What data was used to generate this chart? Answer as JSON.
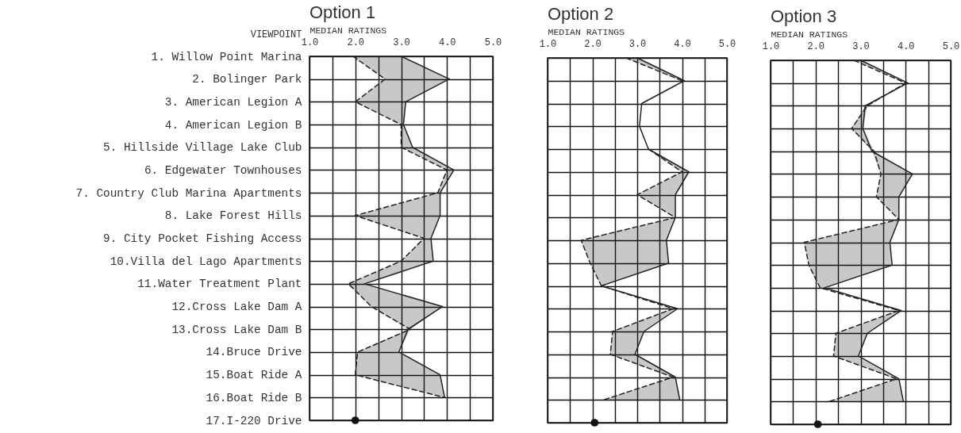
{
  "chart_data": [
    {
      "type": "line",
      "orientation": "horizontal",
      "title": "Option 1",
      "xlabel": "MEDIAN RATINGS",
      "ylabel": "VIEWPOINT",
      "categories": [
        "1. Willow Point Marina",
        "2. Bolinger Park",
        "3. American Legion A",
        "4. American Legion B",
        "5. Hillside Village Lake Club",
        "6. Edgewater Townhouses",
        "7. Country Club Marina Apartments",
        "8. Lake Forest Hills",
        "9. City Pocket Fishing Access",
        "10.Villa del Lago Apartments",
        "11.Water Treatment Plant",
        "12.Cross Lake Dam A",
        "13.Cross Lake Dam B",
        "14.Bruce Drive",
        "15.Boat Ride A",
        "16.Boat Ride B",
        "17.I-220 Drive"
      ],
      "xlim": [
        1,
        5
      ],
      "xticks": [
        {
          "value": 1,
          "label": "1.0"
        },
        {
          "value": 1.5,
          "label": null
        },
        {
          "value": 2,
          "label": "2.0"
        },
        {
          "value": 2.5,
          "label": null
        },
        {
          "value": 3,
          "label": "3.0"
        },
        {
          "value": 3.5,
          "label": null
        },
        {
          "value": 4,
          "label": "4.0"
        },
        {
          "value": 4.5,
          "label": null
        },
        {
          "value": 5,
          "label": "5.0"
        }
      ],
      "grid": true,
      "series": [
        {
          "color": "#222222",
          "values": [
            3.0,
            4.05,
            3.1,
            3.05,
            3.25,
            4.15,
            3.85,
            3.85,
            3.65,
            3.7,
            2.2,
            3.9,
            3.15,
            2.95,
            3.85,
            3.95,
            null
          ]
        },
        {
          "color": "#222222",
          "line_style": "dashed",
          "values": [
            1.95,
            2.65,
            2.0,
            3.0,
            3.0,
            4.0,
            3.8,
            2.0,
            3.5,
            3.0,
            1.85,
            2.35,
            3.2,
            2.05,
            2.0,
            3.95,
            null
          ],
          "lower": [
            1.95,
            2.65,
            2.0,
            3.0,
            3.0,
            4.0,
            3.8,
            2.0,
            3.5,
            3.0,
            1.85,
            2.35,
            3.15,
            2.05,
            2.0,
            3.95,
            null
          ],
          "upper": [
            3.0,
            4.05,
            3.1,
            3.05,
            3.25,
            4.15,
            3.85,
            3.85,
            3.65,
            3.7,
            2.2,
            3.9,
            3.2,
            2.95,
            3.85,
            3.95,
            null
          ]
        },
        {
          "type": "scatter",
          "marker": "circle",
          "color": "#111111",
          "values": [
            null,
            null,
            null,
            null,
            null,
            null,
            null,
            null,
            null,
            null,
            null,
            null,
            null,
            null,
            null,
            null,
            2.0
          ]
        }
      ]
    },
    {
      "type": "line",
      "orientation": "horizontal",
      "title": "Option 2",
      "xlabel": "MEDIAN RATINGS",
      "categories": [
        null,
        null,
        null,
        null,
        null,
        null,
        null,
        null,
        null,
        null,
        null,
        null,
        null,
        null,
        null,
        null,
        null
      ],
      "xlim": [
        1,
        5
      ],
      "xticks": [
        {
          "value": 1,
          "label": "1.0"
        },
        {
          "value": 1.5,
          "label": null
        },
        {
          "value": 2,
          "label": "2.0"
        },
        {
          "value": 2.5,
          "label": null
        },
        {
          "value": 3,
          "label": "3.0"
        },
        {
          "value": 3.5,
          "label": null
        },
        {
          "value": 4,
          "label": "4.0"
        },
        {
          "value": 4.5,
          "label": null
        },
        {
          "value": 5,
          "label": "5.0"
        }
      ],
      "grid": true,
      "series": [
        {
          "color": "#222222",
          "values": [
            3.0,
            4.05,
            3.1,
            3.05,
            3.25,
            4.15,
            3.85,
            3.85,
            3.65,
            3.7,
            2.2,
            3.9,
            3.15,
            2.95,
            3.85,
            3.95,
            null
          ]
        },
        {
          "color": "#222222",
          "line_style": "dashed",
          "values": [
            2.75,
            4.0,
            null,
            null,
            3.25,
            4.0,
            3.0,
            3.85,
            1.75,
            1.95,
            2.2,
            3.8,
            2.45,
            2.4,
            3.8,
            2.25,
            null
          ],
          "lower": [
            2.75,
            4.0,
            null,
            null,
            3.25,
            4.0,
            3.0,
            3.85,
            1.75,
            1.95,
            2.2,
            3.8,
            2.45,
            2.4,
            3.8,
            2.25,
            null
          ],
          "upper": [
            3.0,
            4.05,
            null,
            null,
            3.25,
            4.15,
            3.85,
            3.85,
            3.65,
            3.7,
            2.2,
            3.9,
            3.15,
            2.95,
            3.85,
            3.95,
            null
          ]
        },
        {
          "type": "scatter",
          "marker": "circle",
          "color": "#111111",
          "values": [
            null,
            null,
            null,
            null,
            null,
            null,
            null,
            null,
            null,
            null,
            null,
            null,
            null,
            null,
            null,
            null,
            2.05
          ]
        }
      ]
    },
    {
      "type": "line",
      "orientation": "horizontal",
      "title": "Option 3",
      "xlabel": "MEDIAN RATINGS",
      "categories": [
        null,
        null,
        null,
        null,
        null,
        null,
        null,
        null,
        null,
        null,
        null,
        null,
        null,
        null,
        null,
        null,
        null
      ],
      "xlim": [
        1,
        5
      ],
      "xticks": [
        {
          "value": 1,
          "label": "1.0"
        },
        {
          "value": 1.5,
          "label": null
        },
        {
          "value": 2,
          "label": "2.0"
        },
        {
          "value": 2.5,
          "label": null
        },
        {
          "value": 3,
          "label": "3.0"
        },
        {
          "value": 3.5,
          "label": null
        },
        {
          "value": 4,
          "label": "4.0"
        },
        {
          "value": 4.5,
          "label": null
        },
        {
          "value": 5,
          "label": "5.0"
        }
      ],
      "grid": true,
      "series": [
        {
          "color": "#222222",
          "values": [
            3.0,
            4.05,
            3.1,
            3.05,
            3.25,
            4.15,
            3.85,
            3.85,
            3.65,
            3.7,
            2.2,
            3.9,
            3.15,
            2.95,
            3.85,
            3.95,
            null
          ]
        },
        {
          "color": "#222222",
          "line_style": "dashed",
          "values": [
            2.85,
            4.0,
            3.15,
            2.8,
            3.3,
            3.45,
            3.35,
            3.85,
            1.75,
            1.85,
            2.1,
            3.85,
            2.45,
            2.4,
            3.8,
            2.3,
            null
          ],
          "lower": [
            2.85,
            4.0,
            3.1,
            2.8,
            3.25,
            3.45,
            3.35,
            3.85,
            1.75,
            1.85,
            2.1,
            3.85,
            2.45,
            2.4,
            3.8,
            2.3,
            null
          ],
          "upper": [
            3.0,
            4.05,
            3.15,
            3.05,
            3.3,
            4.15,
            3.85,
            3.85,
            3.65,
            3.7,
            2.2,
            3.9,
            3.15,
            2.95,
            3.85,
            3.95,
            null
          ]
        },
        {
          "type": "scatter",
          "marker": "circle",
          "color": "#111111",
          "values": [
            null,
            null,
            null,
            null,
            null,
            null,
            null,
            null,
            null,
            null,
            null,
            null,
            null,
            null,
            null,
            null,
            2.05
          ]
        }
      ]
    }
  ]
}
